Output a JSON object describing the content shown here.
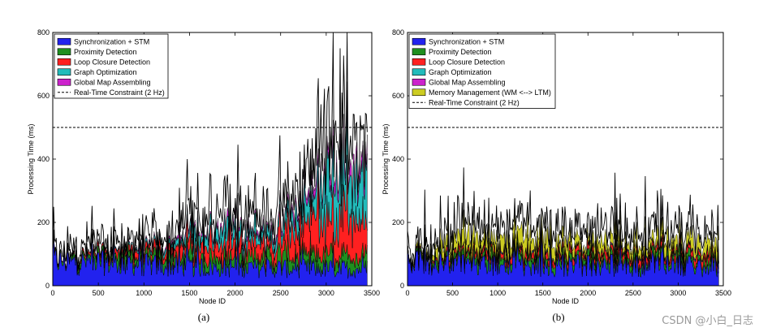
{
  "watermark": "CSDN @小白_日志",
  "chart_data": [
    {
      "type": "area",
      "caption": "(a)",
      "xlabel": "Node ID",
      "ylabel": "Processing Time (ms)",
      "xlim": [
        0,
        3500
      ],
      "ylim": [
        0,
        800
      ],
      "xticks": [
        0,
        500,
        1000,
        1500,
        2000,
        2500,
        3000,
        3500
      ],
      "yticks": [
        0,
        200,
        400,
        600,
        800
      ],
      "constraint": {
        "name": "Real-Time Constraint (2 Hz)",
        "value": 500
      },
      "legend_position": "top-left",
      "x": [
        0,
        100,
        200,
        300,
        400,
        500,
        600,
        700,
        800,
        900,
        1000,
        1100,
        1200,
        1300,
        1400,
        1500,
        1600,
        1700,
        1800,
        1900,
        2000,
        2100,
        2200,
        2300,
        2400,
        2500,
        2600,
        2700,
        2800,
        2900,
        3000,
        3100,
        3200,
        3300,
        3400,
        3450
      ],
      "series": [
        {
          "name": "Synchronization + STM",
          "color": "#2222ee",
          "values": [
            75,
            70,
            68,
            70,
            72,
            70,
            68,
            66,
            65,
            64,
            62,
            60,
            60,
            58,
            58,
            57,
            56,
            56,
            55,
            55,
            54,
            54,
            54,
            53,
            53,
            52,
            52,
            52,
            51,
            51,
            50,
            50,
            50,
            50,
            50,
            50
          ]
        },
        {
          "name": "Proximity Detection",
          "color": "#1f8f1f",
          "values": [
            5,
            8,
            10,
            12,
            15,
            16,
            18,
            18,
            20,
            20,
            22,
            22,
            24,
            24,
            25,
            26,
            26,
            27,
            28,
            28,
            28,
            29,
            30,
            30,
            30,
            31,
            32,
            32,
            32,
            33,
            34,
            34,
            35,
            35,
            36,
            36
          ]
        },
        {
          "name": "Loop Closure Detection",
          "color": "#ff2020",
          "values": [
            0,
            2,
            4,
            6,
            8,
            10,
            10,
            12,
            14,
            15,
            16,
            18,
            20,
            22,
            25,
            28,
            30,
            35,
            40,
            45,
            40,
            35,
            38,
            42,
            45,
            50,
            60,
            70,
            80,
            90,
            100,
            110,
            110,
            100,
            95,
            95
          ]
        },
        {
          "name": "Graph Optimization",
          "color": "#22bbbb",
          "values": [
            0,
            0,
            0,
            0,
            1,
            2,
            2,
            3,
            4,
            5,
            6,
            8,
            10,
            14,
            18,
            25,
            30,
            28,
            32,
            40,
            35,
            30,
            25,
            22,
            20,
            25,
            35,
            50,
            60,
            80,
            100,
            110,
            130,
            120,
            110,
            110
          ]
        },
        {
          "name": "Global Map Assembling",
          "color": "#cc22cc",
          "values": [
            0,
            0,
            0,
            0,
            0,
            1,
            1,
            1,
            2,
            2,
            3,
            4,
            5,
            6,
            7,
            8,
            8,
            8,
            9,
            10,
            10,
            9,
            8,
            8,
            8,
            10,
            12,
            15,
            18,
            22,
            28,
            30,
            32,
            30,
            28,
            28
          ]
        }
      ]
    },
    {
      "type": "area",
      "caption": "(b)",
      "xlabel": "Node ID",
      "ylabel": "Processing Time (ms)",
      "xlim": [
        0,
        3500
      ],
      "ylim": [
        0,
        800
      ],
      "xticks": [
        0,
        500,
        1000,
        1500,
        2000,
        2500,
        3000,
        3500
      ],
      "yticks": [
        0,
        200,
        400,
        600,
        800
      ],
      "constraint": {
        "name": "Real-Time Constraint (2 Hz)",
        "value": 500
      },
      "legend_position": "top-left",
      "x": [
        0,
        100,
        200,
        300,
        400,
        500,
        600,
        700,
        800,
        900,
        1000,
        1100,
        1200,
        1300,
        1400,
        1500,
        1600,
        1700,
        1800,
        1900,
        2000,
        2100,
        2200,
        2300,
        2400,
        2500,
        2600,
        2700,
        2800,
        2900,
        3000,
        3100,
        3200,
        3300,
        3400,
        3450
      ],
      "series": [
        {
          "name": "Synchronization + STM",
          "color": "#2222ee",
          "values": [
            80,
            72,
            70,
            70,
            68,
            66,
            65,
            64,
            62,
            62,
            60,
            60,
            60,
            60,
            60,
            60,
            60,
            60,
            60,
            60,
            60,
            60,
            60,
            60,
            60,
            60,
            60,
            60,
            60,
            60,
            60,
            60,
            60,
            60,
            60,
            60
          ]
        },
        {
          "name": "Proximity Detection",
          "color": "#1f8f1f",
          "values": [
            5,
            8,
            10,
            12,
            14,
            15,
            16,
            16,
            17,
            18,
            18,
            18,
            18,
            18,
            18,
            18,
            18,
            18,
            18,
            18,
            18,
            18,
            18,
            18,
            18,
            18,
            18,
            18,
            18,
            18,
            18,
            18,
            18,
            18,
            18,
            18
          ]
        },
        {
          "name": "Loop Closure Detection",
          "color": "#ff2020",
          "values": [
            0,
            3,
            5,
            6,
            8,
            10,
            12,
            12,
            14,
            14,
            15,
            15,
            15,
            16,
            16,
            16,
            16,
            16,
            16,
            16,
            16,
            16,
            16,
            16,
            16,
            16,
            16,
            16,
            16,
            16,
            16,
            16,
            16,
            16,
            16,
            16
          ]
        },
        {
          "name": "Graph Optimization",
          "color": "#22bbbb",
          "values": [
            0,
            0,
            1,
            1,
            2,
            2,
            2,
            3,
            3,
            3,
            3,
            3,
            3,
            3,
            3,
            3,
            3,
            3,
            3,
            3,
            3,
            3,
            3,
            3,
            3,
            3,
            3,
            3,
            3,
            3,
            3,
            3,
            3,
            3,
            3,
            3
          ]
        },
        {
          "name": "Global Map Assembling",
          "color": "#cc22cc",
          "values": [
            0,
            0,
            0,
            1,
            1,
            1,
            1,
            2,
            2,
            2,
            2,
            2,
            2,
            2,
            2,
            2,
            2,
            2,
            2,
            2,
            2,
            2,
            2,
            2,
            2,
            2,
            2,
            2,
            2,
            2,
            2,
            2,
            2,
            2,
            2,
            2
          ]
        },
        {
          "name": "Memory Management (WM <--> LTM)",
          "color": "#cccc22",
          "values": [
            0,
            5,
            10,
            15,
            25,
            35,
            40,
            38,
            30,
            28,
            30,
            35,
            40,
            45,
            40,
            38,
            35,
            30,
            28,
            25,
            22,
            25,
            30,
            28,
            25,
            22,
            25,
            28,
            30,
            32,
            30,
            28,
            30,
            32,
            30,
            30
          ]
        }
      ]
    }
  ]
}
